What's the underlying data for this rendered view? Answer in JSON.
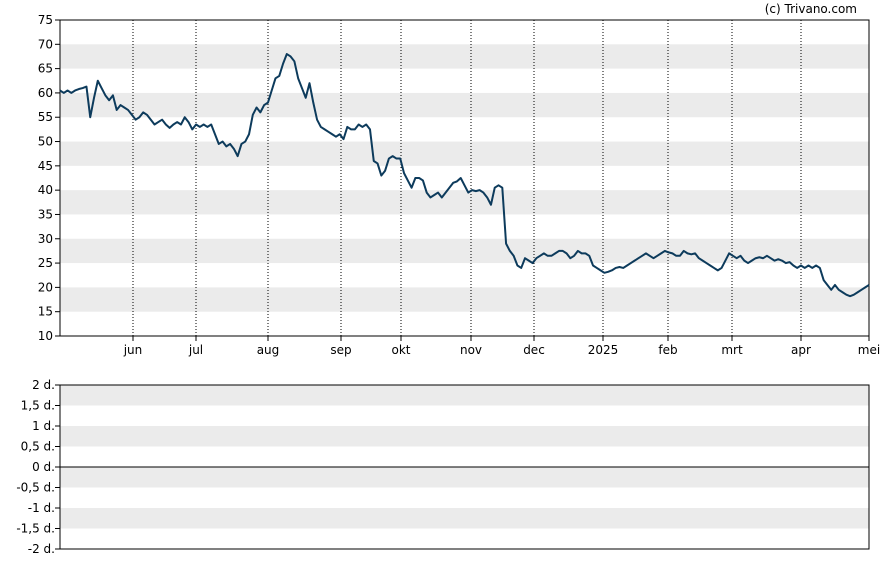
{
  "credit": "(c) Trivano.com",
  "colors": {
    "line": "#0d3b5c",
    "band": "#ebebeb",
    "frame": "#000000",
    "vgrid": "#000000"
  },
  "chart_data": [
    {
      "type": "line",
      "ylim": [
        10,
        75
      ],
      "y_ticks": [
        75,
        70,
        65,
        60,
        55,
        50,
        45,
        40,
        35,
        30,
        25,
        20,
        15,
        10
      ],
      "x_ticks": [
        "jun",
        "jul",
        "aug",
        "sep",
        "okt",
        "nov",
        "dec",
        "2025",
        "feb",
        "mrt",
        "apr",
        "mei"
      ],
      "grid": "horizontal bands, dotted vertical lines at month ticks",
      "series": [
        {
          "values": [
            60.5,
            60.0,
            60.5,
            60.0,
            60.5,
            60.8,
            61.0,
            61.3,
            55.0,
            59.0,
            62.5,
            61.0,
            59.5,
            58.5,
            59.5,
            56.5,
            57.5,
            57.0,
            56.5,
            55.5,
            54.5,
            55.0,
            56.0,
            55.5,
            54.5,
            53.5,
            54.0,
            54.5,
            53.5,
            52.8,
            53.5,
            54.0,
            53.5,
            55.0,
            54.0,
            52.5,
            53.5,
            53.0,
            53.5,
            53.0,
            53.5,
            51.5,
            49.5,
            50.0,
            49.0,
            49.5,
            48.5,
            47.0,
            49.5,
            50.0,
            51.5,
            55.5,
            57.0,
            56.0,
            57.5,
            58.0,
            60.5,
            63.0,
            63.5,
            66.0,
            68.0,
            67.5,
            66.5,
            63.0,
            61.0,
            59.0,
            62.0,
            58.0,
            54.5,
            53.0,
            52.5,
            52.0,
            51.5,
            51.0,
            51.5,
            50.5,
            53.0,
            52.5,
            52.5,
            53.5,
            53.0,
            53.5,
            52.5,
            46.0,
            45.5,
            43.0,
            44.0,
            46.5,
            47.0,
            46.5,
            46.5,
            43.5,
            42.0,
            40.5,
            42.5,
            42.5,
            42.0,
            39.5,
            38.5,
            39.0,
            39.5,
            38.5,
            39.5,
            40.5,
            41.5,
            41.8,
            42.5,
            41.0,
            39.5,
            40.0,
            39.8,
            40.0,
            39.5,
            38.5,
            37.0,
            40.5,
            41.0,
            40.5,
            29.0,
            27.5,
            26.5,
            24.5,
            24.0,
            26.0,
            25.5,
            25.0,
            26.0,
            26.5,
            27.0,
            26.5,
            26.5,
            27.0,
            27.5,
            27.5,
            27.0,
            26.0,
            26.5,
            27.5,
            27.0,
            27.0,
            26.5,
            24.5,
            24.0,
            23.5,
            23.0,
            23.2,
            23.5,
            24.0,
            24.2,
            24.0,
            24.5,
            25.0,
            25.5,
            26.0,
            26.5,
            27.0,
            26.5,
            26.0,
            26.5,
            27.0,
            27.5,
            27.2,
            27.0,
            26.5,
            26.5,
            27.5,
            27.0,
            26.8,
            27.0,
            26.0,
            25.5,
            25.0,
            24.5,
            24.0,
            23.5,
            24.0,
            25.5,
            27.0,
            26.5,
            26.0,
            26.5,
            25.5,
            25.0,
            25.5,
            26.0,
            26.2,
            26.0,
            26.5,
            26.0,
            25.5,
            25.8,
            25.5,
            25.0,
            25.2,
            24.5,
            24.0,
            24.5,
            24.0,
            24.5,
            24.0,
            24.5,
            24.0,
            21.5,
            20.5,
            19.5,
            20.5,
            19.5,
            19.0,
            18.5,
            18.2,
            18.5,
            19.0,
            19.5,
            20.0,
            20.5
          ]
        }
      ]
    },
    {
      "type": "line",
      "ylim": [
        -2,
        2
      ],
      "y_ticks": [
        "2 d.",
        "1,5 d.",
        "1 d.",
        "0,5 d.",
        "0 d.",
        "-0,5 d.",
        "-1 d.",
        "-1,5 d.",
        "-2 d."
      ],
      "reference_line": 0,
      "grid": "horizontal bands",
      "series": []
    }
  ]
}
